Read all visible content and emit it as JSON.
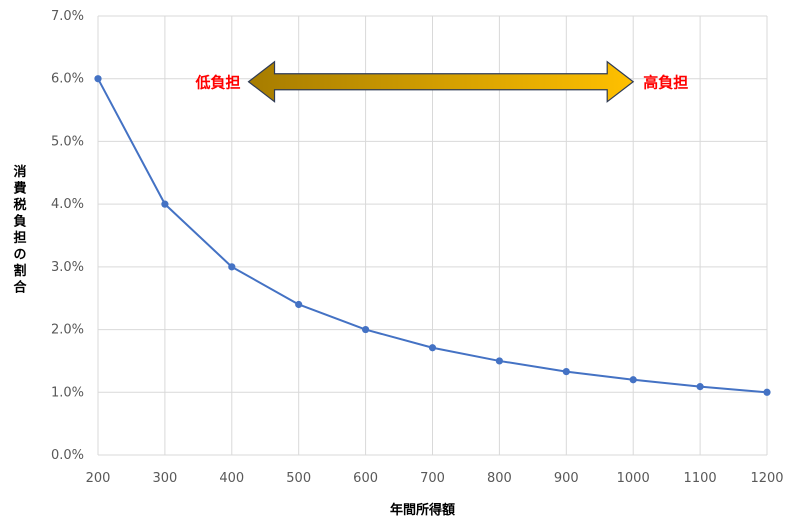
{
  "chart_data": {
    "type": "line",
    "title": "",
    "xlabel": "年間所得額",
    "ylabel": "消費税負担の割合",
    "x": [
      200,
      300,
      400,
      500,
      600,
      700,
      800,
      900,
      1000,
      1100,
      1200
    ],
    "x_tick_labels": [
      "200",
      "300",
      "400",
      "500",
      "600",
      "700",
      "800",
      "900",
      "1000",
      "1100",
      "1200"
    ],
    "xlim": [
      200,
      1200
    ],
    "ylim": [
      0,
      7
    ],
    "y_tick_values": [
      0,
      1,
      2,
      3,
      4,
      5,
      6,
      7
    ],
    "y_tick_labels": [
      "0.0%",
      "1.0%",
      "2.0%",
      "3.0%",
      "4.0%",
      "5.0%",
      "6.0%",
      "7.0%"
    ],
    "series": [
      {
        "values": [
          6.0,
          4.0,
          3.0,
          2.4,
          2.0,
          1.71,
          1.5,
          1.33,
          1.2,
          1.09,
          1.0
        ]
      }
    ],
    "grid": true,
    "line_color": "#4472C4",
    "annotations": {
      "left_label": "低負担",
      "right_label": "高負担",
      "arrow_from_x": 425,
      "arrow_to_x": 1000,
      "arrow_y": 6.0,
      "label_color": "#FF0000",
      "arrow_gradient": [
        "#A67C00",
        "#FFC000"
      ],
      "arrow_outline": "#2F3B55"
    }
  }
}
